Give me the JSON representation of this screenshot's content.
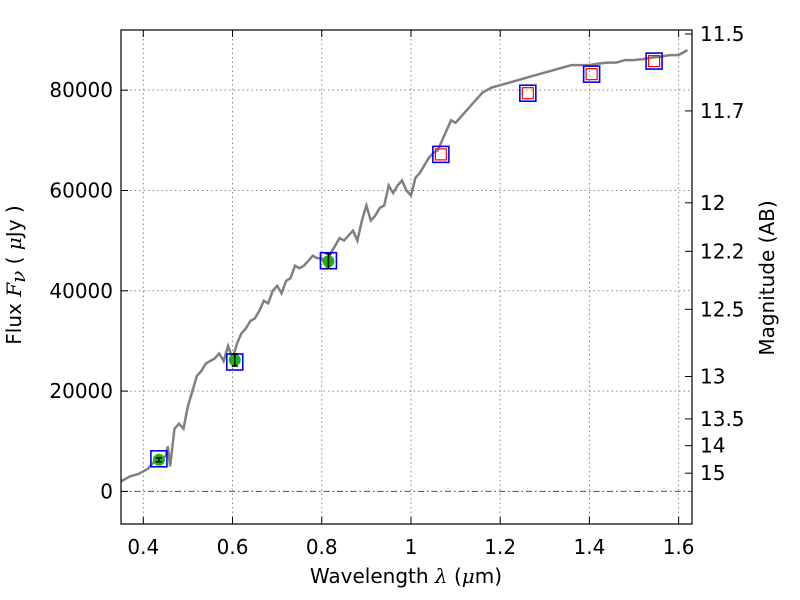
{
  "chart_data": {
    "type": "line",
    "xlabel": "Wavelength",
    "xlabel_symbol": "λ",
    "xlabel_unit_open": " (",
    "xlabel_unit_mu": "μ",
    "xlabel_unit_rest": "m)",
    "ylabel": "Flux",
    "ylabel_symbol": "F",
    "ylabel_symbol_sub": "ν",
    "ylabel_unit_open": " ( ",
    "ylabel_unit_mu": "μ",
    "ylabel_unit_rest": "Jy )",
    "ylabel_right": "Magnitude (AB)",
    "xlim": [
      0.35,
      1.63
    ],
    "ylim": [
      -6500,
      92000
    ],
    "grid": true,
    "x_ticks": [
      {
        "value": 0.4,
        "label": "0.4"
      },
      {
        "value": 0.6,
        "label": "0.6"
      },
      {
        "value": 0.8,
        "label": "0.8"
      },
      {
        "value": 1.0,
        "label": "1"
      },
      {
        "value": 1.2,
        "label": "1.2"
      },
      {
        "value": 1.4,
        "label": "1.4"
      },
      {
        "value": 1.6,
        "label": "1.6"
      }
    ],
    "y_ticks": [
      {
        "value": 0,
        "label": "0"
      },
      {
        "value": 20000,
        "label": "20000"
      },
      {
        "value": 40000,
        "label": "40000"
      },
      {
        "value": 60000,
        "label": "60000"
      },
      {
        "value": 80000,
        "label": "80000"
      }
    ],
    "right_ticks": [
      {
        "mag": 11.5,
        "label": "11.5"
      },
      {
        "mag": 11.7,
        "label": "11.7"
      },
      {
        "mag": 12.0,
        "label": "12"
      },
      {
        "mag": 12.2,
        "label": "12.2"
      },
      {
        "mag": 12.5,
        "label": "12.5"
      },
      {
        "mag": 13.0,
        "label": "13"
      },
      {
        "mag": 13.5,
        "label": "13.5"
      },
      {
        "mag": 14.0,
        "label": "14"
      },
      {
        "mag": 15.0,
        "label": "15"
      }
    ],
    "zero_line": 0,
    "model_spectrum": {
      "color": "#808080",
      "x": [
        0.35,
        0.37,
        0.39,
        0.41,
        0.425,
        0.44,
        0.45,
        0.455,
        0.46,
        0.47,
        0.48,
        0.49,
        0.5,
        0.51,
        0.52,
        0.53,
        0.54,
        0.55,
        0.56,
        0.57,
        0.58,
        0.59,
        0.6,
        0.61,
        0.62,
        0.63,
        0.64,
        0.65,
        0.66,
        0.67,
        0.68,
        0.69,
        0.7,
        0.71,
        0.72,
        0.73,
        0.74,
        0.75,
        0.76,
        0.77,
        0.78,
        0.79,
        0.8,
        0.81,
        0.82,
        0.83,
        0.84,
        0.85,
        0.86,
        0.87,
        0.88,
        0.89,
        0.9,
        0.91,
        0.92,
        0.93,
        0.94,
        0.95,
        0.96,
        0.97,
        0.98,
        0.99,
        1.0,
        1.01,
        1.02,
        1.03,
        1.04,
        1.05,
        1.06,
        1.07,
        1.08,
        1.09,
        1.1,
        1.12,
        1.14,
        1.15,
        1.16,
        1.18,
        1.2,
        1.22,
        1.24,
        1.26,
        1.28,
        1.3,
        1.32,
        1.34,
        1.36,
        1.38,
        1.4,
        1.42,
        1.44,
        1.46,
        1.48,
        1.5,
        1.52,
        1.54,
        1.56,
        1.58,
        1.6,
        1.62
      ],
      "y": [
        2000,
        3000,
        3500,
        4500,
        6000,
        6500,
        7000,
        9000,
        5000,
        12500,
        13500,
        12500,
        17000,
        20000,
        23000,
        24000,
        25500,
        26000,
        26500,
        27500,
        26000,
        29000,
        26500,
        29500,
        31500,
        32500,
        34000,
        34500,
        36000,
        38000,
        37500,
        40000,
        41000,
        39500,
        42000,
        42500,
        45000,
        44500,
        45000,
        46000,
        47000,
        46500,
        46500,
        45000,
        47500,
        49000,
        50500,
        50000,
        51000,
        52000,
        50000,
        54000,
        57000,
        54000,
        55000,
        56500,
        57000,
        61000,
        59500,
        61000,
        62000,
        60000,
        59000,
        62500,
        63500,
        65000,
        66500,
        67500,
        68000,
        70000,
        72000,
        74000,
        73500,
        75500,
        77500,
        78500,
        79500,
        80500,
        81000,
        81500,
        82000,
        82500,
        83000,
        83500,
        84000,
        84500,
        85000,
        85000,
        85000,
        85300,
        85500,
        85500,
        86000,
        86000,
        86200,
        86500,
        86700,
        87000,
        87000,
        88000
      ]
    },
    "observed": [
      {
        "x": 0.435,
        "y": 6300,
        "err": 400
      },
      {
        "x": 0.605,
        "y": 26200,
        "err": 1200
      },
      {
        "x": 0.815,
        "y": 45900,
        "err": 1500
      }
    ],
    "synthetic": [
      {
        "x": 0.435,
        "y": 6500,
        "kind": "blue"
      },
      {
        "x": 0.605,
        "y": 25800,
        "kind": "blue"
      },
      {
        "x": 0.815,
        "y": 46000,
        "kind": "blue"
      },
      {
        "x": 1.067,
        "y": 67200,
        "kind": "both"
      },
      {
        "x": 1.262,
        "y": 79400,
        "kind": "both"
      },
      {
        "x": 1.405,
        "y": 83200,
        "kind": "both"
      },
      {
        "x": 1.545,
        "y": 85800,
        "kind": "both"
      }
    ],
    "colors": {
      "observed_fill": "#1bb31b",
      "blue_square": "#0000ff",
      "red_square": "#ff0000",
      "grid": "#888888",
      "zero_line": "#555555"
    }
  }
}
